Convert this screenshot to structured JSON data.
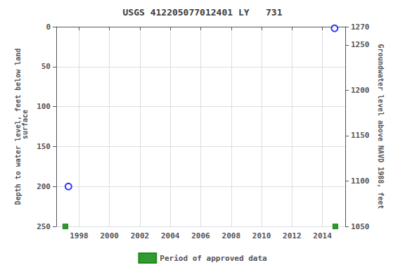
{
  "chart_data": {
    "type": "scatter",
    "title": "USGS 412205077012401 LY   731",
    "ylabel": "Depth to water level, feet below land\n surface",
    "y2label": "Groundwater level above NAVD 1988, feet",
    "xlim": [
      1996.5,
      2015.5
    ],
    "xticks": [
      1998,
      2000,
      2002,
      2004,
      2006,
      2008,
      2010,
      2012,
      2014
    ],
    "ylim": [
      250,
      0
    ],
    "yticks": [
      0,
      50,
      100,
      150,
      200,
      250
    ],
    "y2lim": [
      1050,
      1270
    ],
    "y2ticks": [
      1050,
      1100,
      1150,
      1200,
      1250
    ],
    "grid": true,
    "legend": "bottom",
    "series": [
      {
        "x": [
          1997.3,
          2014.8
        ],
        "values": [
          200,
          2
        ],
        "color": "blue",
        "marker": "ring"
      },
      {
        "name": "Period of approved data",
        "x": [
          1997.1,
          2014.85
        ],
        "values": [
          250,
          250
        ],
        "color": "#008000",
        "marker": "square"
      }
    ]
  }
}
